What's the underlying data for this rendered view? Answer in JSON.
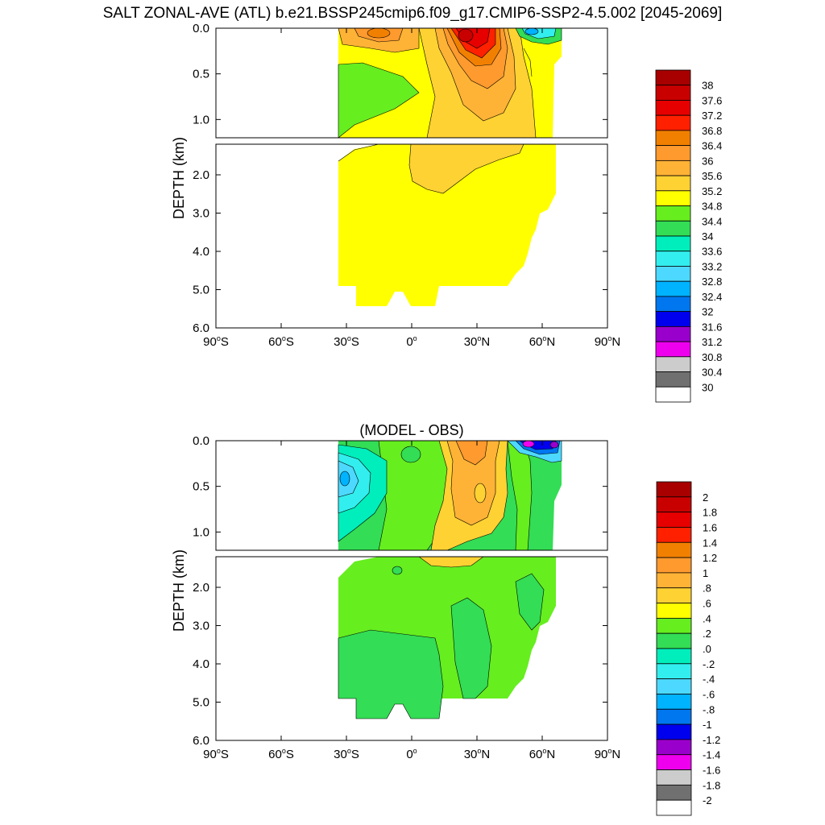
{
  "title": "SALT ZONAL-AVE (ATL) b.e21.BSSP245cmip6.f09_g17.CMIP6-SSP2-4.5.002 [2045-2069]",
  "chart_data": [
    {
      "type": "contour",
      "title": "",
      "ylabel": "DEPTH (km)",
      "xlim": [
        -90,
        90
      ],
      "ylim_upper": [
        0.0,
        1.2
      ],
      "ylim_lower": [
        1.2,
        6.0
      ],
      "x_ticks": [
        {
          "value": -90,
          "num": "90",
          "hemi": "S"
        },
        {
          "value": -60,
          "num": "60",
          "hemi": "S"
        },
        {
          "value": -30,
          "num": "30",
          "hemi": "S"
        },
        {
          "value": 0,
          "num": "0",
          "hemi": ""
        },
        {
          "value": 30,
          "num": "30",
          "hemi": "N"
        },
        {
          "value": 60,
          "num": "60",
          "hemi": "N"
        },
        {
          "value": 90,
          "num": "90",
          "hemi": "N"
        }
      ],
      "y_ticks_upper": [
        "0.0",
        "0.5",
        "1.0"
      ],
      "y_ticks_lower": [
        "2.0",
        "3.0",
        "4.0",
        "5.0",
        "6.0"
      ],
      "colorbar_labels": [
        "38",
        "37.6",
        "37.2",
        "36.8",
        "36.4",
        "36",
        "35.6",
        "35.2",
        "34.8",
        "34.4",
        "34",
        "33.6",
        "33.2",
        "32.8",
        "32.4",
        "32",
        "31.6",
        "31.2",
        "30.8",
        "30.4",
        "30"
      ],
      "colorbar_colors": [
        "#a80000",
        "#c90000",
        "#e60000",
        "#ff2000",
        "#f28000",
        "#ff9a2e",
        "#ffb336",
        "#ffd233",
        "#ffff00",
        "#66ee1f",
        "#33dd55",
        "#00eebb",
        "#33eeee",
        "#4dd9ff",
        "#00b3ff",
        "#0077ee",
        "#0000ee",
        "#9900cc",
        "#ee00ee",
        "#cccccc",
        "#707070",
        "#ffffff"
      ]
    },
    {
      "type": "contour",
      "title": "(MODEL - OBS)",
      "ylabel": "DEPTH (km)",
      "xlim": [
        -90,
        90
      ],
      "ylim_upper": [
        0.0,
        1.2
      ],
      "ylim_lower": [
        1.2,
        6.0
      ],
      "x_ticks": [
        {
          "value": -90,
          "num": "90",
          "hemi": "S"
        },
        {
          "value": -60,
          "num": "60",
          "hemi": "S"
        },
        {
          "value": -30,
          "num": "30",
          "hemi": "S"
        },
        {
          "value": 0,
          "num": "0",
          "hemi": ""
        },
        {
          "value": 30,
          "num": "30",
          "hemi": "N"
        },
        {
          "value": 60,
          "num": "60",
          "hemi": "N"
        },
        {
          "value": 90,
          "num": "90",
          "hemi": "N"
        }
      ],
      "y_ticks_upper": [
        "0.0",
        "0.5",
        "1.0"
      ],
      "y_ticks_lower": [
        "2.0",
        "3.0",
        "4.0",
        "5.0",
        "6.0"
      ],
      "colorbar_labels": [
        "2",
        "1.8",
        "1.6",
        "1.4",
        "1.2",
        "1",
        ".8",
        ".6",
        ".4",
        ".2",
        ".0",
        "-.2",
        "-.4",
        "-.6",
        "-.8",
        "-1",
        "-1.2",
        "-1.4",
        "-1.6",
        "-1.8",
        "-2"
      ],
      "colorbar_colors": [
        "#a80000",
        "#c90000",
        "#e60000",
        "#ff2000",
        "#f28000",
        "#ff9a2e",
        "#ffb336",
        "#ffd233",
        "#ffff00",
        "#66ee1f",
        "#33dd55",
        "#00eebb",
        "#33eeee",
        "#4dd9ff",
        "#00b3ff",
        "#0077ee",
        "#0000ee",
        "#9900cc",
        "#ee00ee",
        "#cccccc",
        "#707070",
        "#ffffff"
      ]
    }
  ]
}
